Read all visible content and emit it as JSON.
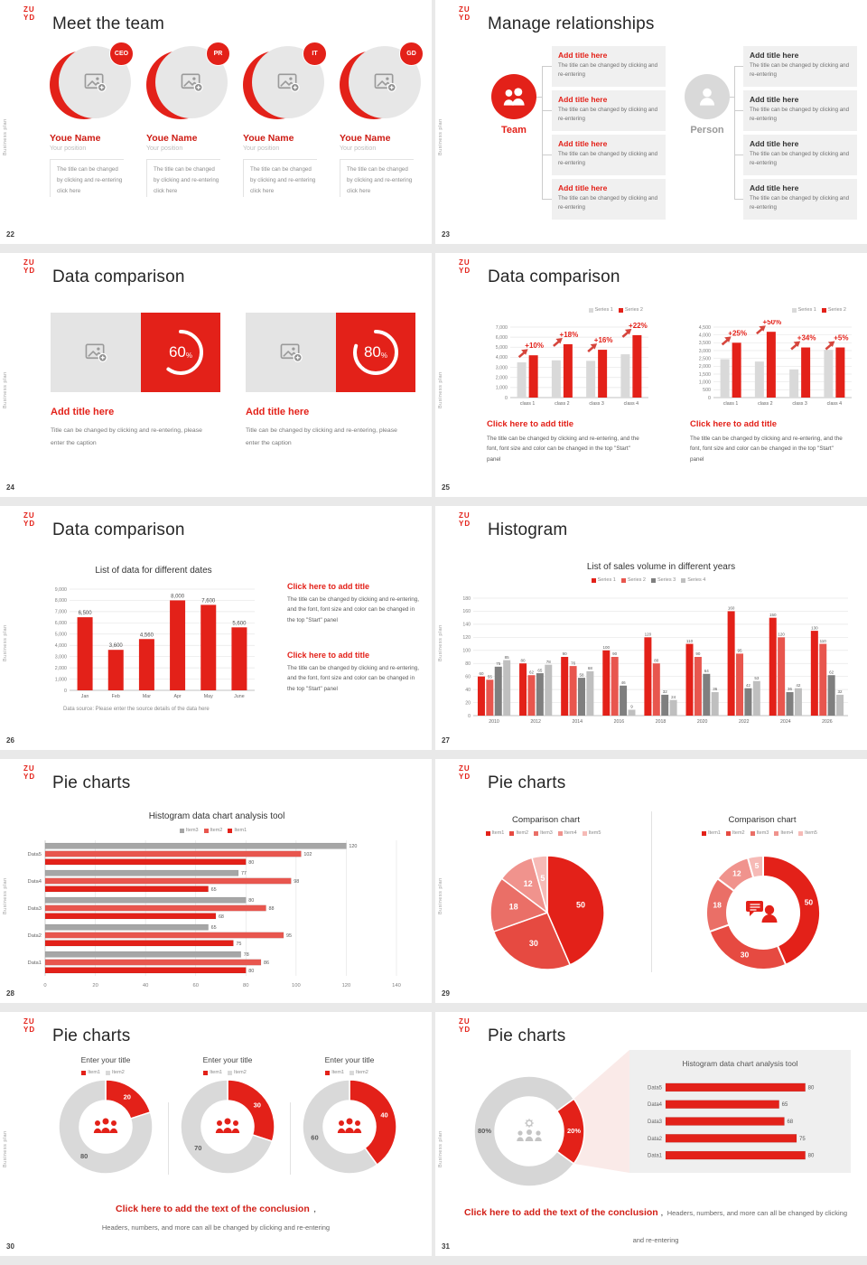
{
  "global": {
    "logo_line1": "ZU",
    "logo_line2": "YD",
    "side_text": "Business plan",
    "accent": "#e32119",
    "accent_light": "#e8564e",
    "gray_bar": "#d9d9d9"
  },
  "slides": {
    "s22": {
      "number": "22",
      "title": "Meet the team",
      "members": [
        {
          "badge": "CEO",
          "name": "Youe Name",
          "position": "Your position",
          "desc": "The title can be changed by clicking and re-entering click here"
        },
        {
          "badge": "PR",
          "name": "Youe Name",
          "position": "Your position",
          "desc": "The title can be changed by clicking and re-entering click here"
        },
        {
          "badge": "IT",
          "name": "Youe Name",
          "position": "Your position",
          "desc": "The title can be changed by clicking and re-entering click here"
        },
        {
          "badge": "GD",
          "name": "Youe Name",
          "position": "Your position",
          "desc": "The title can be changed by clicking and re-entering click here"
        }
      ]
    },
    "s23": {
      "number": "23",
      "title": "Manage relationships",
      "team_label": "Team",
      "person_label": "Person",
      "item_title": "Add title here",
      "item_body": "The title can be changed by clicking and re-entering"
    },
    "s24": {
      "number": "24",
      "title": "Data comparison",
      "pct_suffix": "%",
      "card_title": "Add title here",
      "card_body": "Title can be changed by clicking and re-entering, please enter the caption",
      "cards": [
        {
          "pct": "60"
        },
        {
          "pct": "80"
        }
      ]
    },
    "s25": {
      "number": "25",
      "title": "Data comparison",
      "block_title": "Click here to add title",
      "block_body": "The title can be changed by clicking and re-entering, and the font, font size and color can be changed in the top \"Start\" panel",
      "chart_data": [
        {
          "type": "bar",
          "categories": [
            "class 1",
            "class 2",
            "class 3",
            "class 4"
          ],
          "series": [
            {
              "name": "Series 1",
              "color": "#d9d9d9",
              "values": [
                3500,
                3700,
                3650,
                4300
              ]
            },
            {
              "name": "Series 2",
              "color": "#e32119",
              "values": [
                4200,
                5300,
                4750,
                6200
              ]
            }
          ],
          "annotations": [
            "+10%",
            "+18%",
            "+16%",
            "+22%"
          ],
          "ylim": [
            0,
            7000
          ],
          "ystep": 1000,
          "grid": true,
          "legend_position": "top-right"
        },
        {
          "type": "bar",
          "categories": [
            "class 1",
            "class 2",
            "class 3",
            "class 4"
          ],
          "series": [
            {
              "name": "Series 1",
              "color": "#d9d9d9",
              "values": [
                2450,
                2300,
                1800,
                3050
              ]
            },
            {
              "name": "Series 2",
              "color": "#e32119",
              "values": [
                3500,
                4200,
                3200,
                3200
              ]
            }
          ],
          "annotations": [
            "+25%",
            "+50%",
            "+34%",
            "+5%"
          ],
          "ylim": [
            0,
            4500
          ],
          "ystep": 500,
          "grid": true,
          "legend_position": "top-right"
        }
      ]
    },
    "s26": {
      "number": "26",
      "title": "Data comparison",
      "block_title": "Click here to add title",
      "block_body": "The title can be changed by clicking and re-entering, and the font, font size and color can be changed in the top \"Start\" panel",
      "chart_data": {
        "type": "bar",
        "title": "List of data for different dates",
        "categories": [
          "Jan",
          "Feb",
          "Mar",
          "Apr",
          "May",
          "June"
        ],
        "series": [
          {
            "name": "Data",
            "color": "#e32119",
            "values": [
              6500,
              3600,
              4560,
              8000,
              7600,
              5600
            ]
          }
        ],
        "value_labels": [
          "6,500",
          "3,600",
          "4,560",
          "8,000",
          "7,600",
          "5,600"
        ],
        "ylim": [
          0,
          9000
        ],
        "ystep": 1000,
        "grid": true,
        "caption": "Data source: Please enter the source details of the data here"
      }
    },
    "s27": {
      "number": "27",
      "title": "Histogram",
      "chart_data": {
        "type": "bar",
        "title": "List of sales volume in different years",
        "categories": [
          "2010",
          "2012",
          "2014",
          "2016",
          "2018",
          "2020",
          "2022",
          "2024",
          "2026"
        ],
        "series": [
          {
            "name": "Series 1",
            "color": "#e32119",
            "values": [
              60,
              80,
              90,
              100,
              120,
              110,
              160,
              150,
              130
            ]
          },
          {
            "name": "Series 2",
            "color": "#e8564e",
            "values": [
              55,
              62,
              76,
              90,
              80,
              90,
              95,
              120,
              110
            ]
          },
          {
            "name": "Series 3",
            "color": "#7f7f7f",
            "values": [
              75,
              65,
              58,
              46,
              32,
              64,
              42,
              36,
              62
            ]
          },
          {
            "name": "Series 4",
            "color": "#bfbfbf",
            "values": [
              85,
              78,
              68,
              9,
              24,
              36,
              53,
              42,
              32
            ]
          }
        ],
        "show_value_labels": true,
        "ylim": [
          0,
          180
        ],
        "ystep": 20,
        "grid": true,
        "legend_position": "top-center"
      }
    },
    "s28": {
      "number": "28",
      "title": "Pie charts",
      "chart_data": {
        "type": "bar-horizontal",
        "title": "Histogram data chart analysis tool",
        "categories": [
          "Data5",
          "Data4",
          "Data3",
          "Data2",
          "Data1"
        ],
        "series": [
          {
            "name": "Item3",
            "color": "#a6a6a6",
            "values": [
              120,
              77,
              80,
              65,
              78
            ]
          },
          {
            "name": "Item2",
            "color": "#e8564e",
            "values": [
              102,
              98,
              88,
              95,
              86
            ]
          },
          {
            "name": "Item1",
            "color": "#e32119",
            "values": [
              80,
              65,
              68,
              75,
              80
            ]
          }
        ],
        "xlim": [
          0,
          140
        ],
        "xstep": 20,
        "grid": true,
        "legend_position": "top-center"
      }
    },
    "s29": {
      "number": "29",
      "title": "Pie charts",
      "charts": [
        {
          "title": "Comparison chart",
          "chart_data": {
            "type": "pie",
            "labels": [
              "Item1",
              "Item2",
              "Item3",
              "Item4",
              "Item5"
            ],
            "values": [
              50,
              30,
              18,
              12,
              5
            ],
            "slice_labels": [
              "50",
              "30",
              "18",
              "12",
              "5"
            ],
            "colors": [
              "#e32119",
              "#e64a41",
              "#ea6f67",
              "#f0938d",
              "#f6bab6"
            ],
            "legend_position": "top-center"
          }
        },
        {
          "title": "Comparison chart",
          "chart_data": {
            "type": "donut",
            "labels": [
              "Item1",
              "Item2",
              "Item3",
              "Item4",
              "Item5"
            ],
            "values": [
              50,
              30,
              18,
              12,
              5
            ],
            "slice_labels": [
              "50",
              "30",
              "18",
              "12",
              "5"
            ],
            "colors": [
              "#e32119",
              "#e64a41",
              "#ea6f67",
              "#f0938d",
              "#f6bab6"
            ],
            "center_icon": "person-chat-icon",
            "legend_position": "top-center"
          }
        }
      ]
    },
    "s30": {
      "number": "30",
      "title": "Pie charts",
      "donuts": [
        {
          "title": "Enter your title",
          "chart_data": {
            "type": "donut",
            "labels": [
              "Item1",
              "Item2"
            ],
            "values": [
              20,
              80
            ],
            "slice_labels": [
              "20",
              "80"
            ],
            "label_colors": [
              "#ffffff",
              "#595959"
            ],
            "colors": [
              "#e32119",
              "#d9d9d9"
            ],
            "center_icon": "people-icon"
          }
        },
        {
          "title": "Enter your title",
          "chart_data": {
            "type": "donut",
            "labels": [
              "Item1",
              "Item2"
            ],
            "values": [
              30,
              70
            ],
            "slice_labels": [
              "30",
              "70"
            ],
            "label_colors": [
              "#ffffff",
              "#595959"
            ],
            "colors": [
              "#e32119",
              "#d9d9d9"
            ],
            "center_icon": "people-icon"
          }
        },
        {
          "title": "Enter your title",
          "chart_data": {
            "type": "donut",
            "labels": [
              "Item1",
              "Item2"
            ],
            "values": [
              40,
              60
            ],
            "slice_labels": [
              "40",
              "60"
            ],
            "label_colors": [
              "#ffffff",
              "#595959"
            ],
            "colors": [
              "#e32119",
              "#d9d9d9"
            ],
            "center_icon": "people-icon"
          }
        }
      ],
      "conclusion": {
        "title": "Click here to add the text of the conclusion",
        "comma": ",",
        "body": "Headers, numbers, and more can all be changed by clicking and re-entering"
      }
    },
    "s31": {
      "number": "31",
      "title": "Pie charts",
      "chart_data": {
        "type": "donut",
        "labels": [
          "Item1",
          "Item2"
        ],
        "values": [
          20,
          80
        ],
        "slice_labels": [
          "20%",
          "80%"
        ],
        "label_colors": [
          "#ffffff",
          "#595959"
        ],
        "colors": [
          "#e32119",
          "#d6d6d6"
        ],
        "center_icon": "people-gear-icon"
      },
      "panel": {
        "title": "Histogram data chart analysis tool",
        "chart_data": {
          "type": "bar-horizontal",
          "categories": [
            "Data5",
            "Data4",
            "Data3",
            "Data2",
            "Data1"
          ],
          "series": [
            {
              "name": "Item1",
              "color": "#e32119",
              "values": [
                80,
                65,
                68,
                75,
                80
              ]
            }
          ],
          "xlim": [
            0,
            90
          ]
        }
      },
      "conclusion": {
        "title": "Click here to add the text of the conclusion",
        "comma": ",",
        "body": "Headers, numbers, and more can all be changed by clicking and re-entering"
      }
    }
  }
}
